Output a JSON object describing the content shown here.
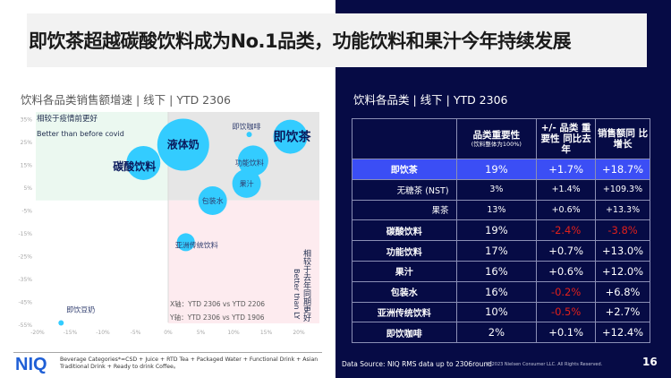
{
  "slide": {
    "title": "即饮茶超越碳酸饮料成为No.1品类，功能饮料和果汁今年持续发展",
    "page_number": "16",
    "colors": {
      "navy": "#060b45",
      "accent_blue": "#3b4ef5",
      "bubble": "#33ccff",
      "negative": "#e0201b",
      "niq_blue": "#1f5fd6"
    }
  },
  "left_panel": {
    "chart_title": "饮料各品类销售额增速 | 线下 | YTD 2306",
    "footer": {
      "logo": "NIQ",
      "note": "Beverage Categories*=CSD + Juice + RTD Tea + Packaged Water + Functional Drink + Asian Traditional Drink + Ready to drink Coffee。"
    }
  },
  "chart_data": {
    "type": "scatter",
    "subtype": "bubble",
    "title": "饮料各品类销售额增速 | 线下 | YTD 2306",
    "xlabel": "X轴：YTD 2306 vs YTD 2206",
    "ylabel": "Y轴：YTD 2306 vs YTD 1906",
    "xlim": [
      -20,
      22
    ],
    "ylim": [
      -55,
      35
    ],
    "x_ticks": [
      "-20%",
      "-15%",
      "-10%",
      "-5%",
      "0%",
      "5%",
      "10%",
      "15%",
      "20%"
    ],
    "x_tick_values": [
      -20,
      -15,
      -10,
      -5,
      0,
      5,
      10,
      15,
      20
    ],
    "y_ticks": [
      "35%",
      "25%",
      "15%",
      "5%",
      "-5%",
      "-15%",
      "-25%",
      "-35%",
      "-45%",
      "-55%"
    ],
    "y_tick_values": [
      35,
      25,
      15,
      5,
      -5,
      -15,
      -25,
      -35,
      -45,
      -55
    ],
    "grid": false,
    "annotations": {
      "top_left_cn": "相较于疫情前更好",
      "top_left_en": "Better than before covid",
      "right_cn": "相较于去年同期更好",
      "right_en": "Better than LY",
      "x_axis_note": "X轴：YTD 2306 vs YTD 2206",
      "y_axis_note": "Y轴：YTD 2306 vs YTD 1906"
    },
    "points": [
      {
        "label": "碳酸饮料",
        "x": -3.8,
        "y": 16,
        "size": 19,
        "label_style": "bold-large"
      },
      {
        "label": "液体奶",
        "x": 2.3,
        "y": 24,
        "size": 29,
        "label_style": "bold-large"
      },
      {
        "label": "即饮咖啡",
        "x": 12.4,
        "y": 28.5,
        "size": 2,
        "label_style": "small"
      },
      {
        "label": "即饮茶",
        "x": 18.7,
        "y": 27.5,
        "size": 19,
        "label_style": "bold-xlarge"
      },
      {
        "label": "功能饮料",
        "x": 13.0,
        "y": 17,
        "size": 17,
        "label_style": "small"
      },
      {
        "label": "果汁",
        "x": 12.0,
        "y": 7,
        "size": 16,
        "label_style": "small"
      },
      {
        "label": "包装水",
        "x": 6.8,
        "y": -0.5,
        "size": 16,
        "label_style": "small"
      },
      {
        "label": "亚洲传统饮料",
        "x": 2.7,
        "y": -18.7,
        "size": 10,
        "label_style": "small"
      },
      {
        "label": "即饮豆奶",
        "x": -16.4,
        "y": -54,
        "size": 0.3,
        "label_style": "small"
      }
    ]
  },
  "right_panel": {
    "table_title": "饮料各品类 | 线下 | YTD 2306",
    "headers": [
      {
        "label": "",
        "sub": ""
      },
      {
        "label": "品类重要性",
        "sub": "(饮料整体为100%)"
      },
      {
        "label": "+/- 品类 重要性 同比去年",
        "sub": ""
      },
      {
        "label": "销售额同 比增长",
        "sub": ""
      }
    ],
    "rows": [
      {
        "category": "即饮茶",
        "importance": "19%",
        "importance_change": "+1.7%",
        "sales_growth": "+18.7%",
        "highlight": true,
        "sub": false
      },
      {
        "category": "无糖茶 (NST)",
        "importance": "3%",
        "importance_change": "+1.4%",
        "sales_growth": "+109.3%",
        "highlight": false,
        "sub": true
      },
      {
        "category": "果茶",
        "importance": "13%",
        "importance_change": "+0.6%",
        "sales_growth": "+13.3%",
        "highlight": false,
        "sub": true
      },
      {
        "category": "碳酸饮料",
        "importance": "19%",
        "importance_change": "-2.4%",
        "sales_growth": "-3.8%",
        "highlight": false,
        "sub": false
      },
      {
        "category": "功能饮料",
        "importance": "17%",
        "importance_change": "+0.7%",
        "sales_growth": "+13.0%",
        "highlight": false,
        "sub": false
      },
      {
        "category": "果汁",
        "importance": "16%",
        "importance_change": "+0.6%",
        "sales_growth": "+12.0%",
        "highlight": false,
        "sub": false
      },
      {
        "category": "包装水",
        "importance": "16%",
        "importance_change": "-0.2%",
        "sales_growth": "+6.8%",
        "highlight": false,
        "sub": false
      },
      {
        "category": "亚洲传统饮料",
        "importance": "10%",
        "importance_change": "-0.5%",
        "sales_growth": "+2.7%",
        "highlight": false,
        "sub": false
      },
      {
        "category": "即饮咖啡",
        "importance": "2%",
        "importance_change": "+0.1%",
        "sales_growth": "+12.4%",
        "highlight": false,
        "sub": false
      }
    ],
    "data_source": "Data Source: NIQ RMS data up to 2306round",
    "copyright": "© 2023 Nielsen Consumer LLC. All Rights Reserved."
  }
}
